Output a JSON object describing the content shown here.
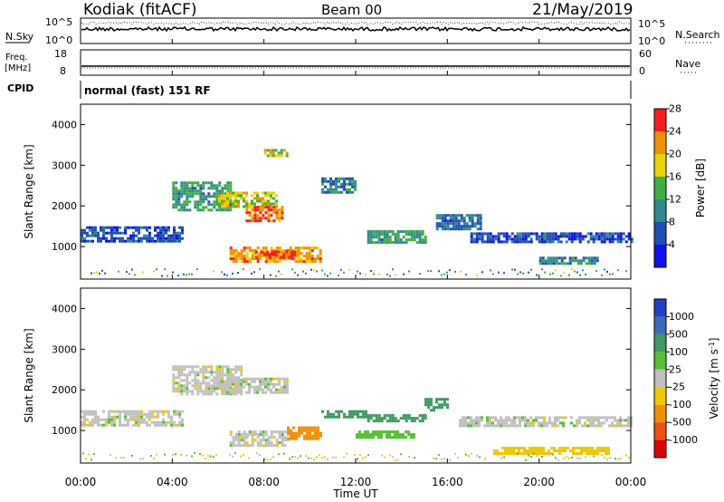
{
  "header": {
    "site": "Kodiak (fitACF)",
    "beam": "Beam 00",
    "date": "21/May/2019"
  },
  "noise_panel": {
    "left_label": "N.Sky",
    "right_label": "N.Search",
    "left_ticks": [
      "10^5",
      "10^0"
    ],
    "right_ticks": [
      "10^5",
      "10^0"
    ]
  },
  "freq_panel": {
    "left_label_line1": "Freq.",
    "left_label_line2": "[MHz]",
    "right_label": "Nave",
    "left_ticks": [
      "18",
      "8"
    ],
    "right_ticks": [
      "60",
      "0"
    ]
  },
  "cpid_panel": {
    "label": "CPID",
    "text": "normal (fast) 151 RF"
  },
  "time_axis": {
    "label": "Time UT",
    "ticks": [
      "00:00",
      "04:00",
      "08:00",
      "12:00",
      "16:00",
      "20:00",
      "00:00"
    ]
  },
  "power_colorbar": {
    "label": "Power [dB]",
    "tick_labels": [
      "4",
      "8",
      "12",
      "16",
      "20",
      "24",
      "28"
    ],
    "colors": [
      "#1010f0",
      "#1f4fb4",
      "#2e8a90",
      "#3fb040",
      "#e8d400",
      "#f29000",
      "#ff1a1a"
    ]
  },
  "velocity_colorbar": {
    "label_prefix": "Velocity [m s",
    "label_sup": "-1",
    "label_suffix": "]",
    "tick_labels": [
      "1000",
      "500",
      "100",
      "25",
      "-25",
      "-100",
      "-500",
      "-1000"
    ],
    "colors": [
      "#2040c8",
      "#3a6abc",
      "#3d9a60",
      "#55c030",
      "#c0c0c0",
      "#f0c800",
      "#f09000",
      "#f05010",
      "#e00000"
    ]
  },
  "chart_data": [
    {
      "type": "heatmap",
      "panel": "power",
      "ylabel": "Slant Range [km]",
      "xlabel": "Time UT",
      "ylim": [
        200,
        4500
      ],
      "xlim": [
        0,
        24
      ],
      "yticks": [
        "1000",
        "2000",
        "3000",
        "4000"
      ],
      "value_unit": "dB",
      "value_range": [
        2,
        31
      ],
      "echo_regions": [
        {
          "t": [
            0,
            4.5
          ],
          "range_km": [
            1150,
            1500
          ],
          "value": 8
        },
        {
          "t": [
            4.0,
            6.5
          ],
          "range_km": [
            1900,
            2600
          ],
          "value": 14
        },
        {
          "t": [
            6.0,
            8.5
          ],
          "range_km": [
            1950,
            2350
          ],
          "value": 20
        },
        {
          "t": [
            7.2,
            8.8
          ],
          "range_km": [
            1650,
            2000
          ],
          "value": 26
        },
        {
          "t": [
            6.5,
            10.5
          ],
          "range_km": [
            650,
            1000
          ],
          "value": 24
        },
        {
          "t": [
            7.5,
            9.5
          ],
          "range_km": [
            700,
            900
          ],
          "value": 28
        },
        {
          "t": [
            10.5,
            12.0
          ],
          "range_km": [
            2300,
            2700
          ],
          "value": 12
        },
        {
          "t": [
            12.5,
            15.0
          ],
          "range_km": [
            1100,
            1400
          ],
          "value": 14
        },
        {
          "t": [
            15.5,
            17.5
          ],
          "range_km": [
            1400,
            1800
          ],
          "value": 10
        },
        {
          "t": [
            17.0,
            24.0
          ],
          "range_km": [
            1100,
            1350
          ],
          "value": 8
        },
        {
          "t": [
            20.0,
            22.5
          ],
          "range_km": [
            550,
            750
          ],
          "value": 12
        },
        {
          "t": [
            8.0,
            9.0
          ],
          "range_km": [
            3200,
            3400
          ],
          "value": 20
        }
      ]
    },
    {
      "type": "heatmap",
      "panel": "velocity",
      "ylabel": "Slant Range [km]",
      "xlabel": "Time UT",
      "ylim": [
        200,
        4500
      ],
      "xlim": [
        0,
        24
      ],
      "yticks": [
        "1000",
        "2000",
        "3000",
        "4000"
      ],
      "value_unit": "m s-1",
      "echo_regions": [
        {
          "t": [
            0,
            4.5
          ],
          "range_km": [
            1150,
            1500
          ],
          "value": 0
        },
        {
          "t": [
            4.0,
            7.0
          ],
          "range_km": [
            1900,
            2600
          ],
          "value": 0
        },
        {
          "t": [
            6.0,
            9.0
          ],
          "range_km": [
            1900,
            2300
          ],
          "value": 0
        },
        {
          "t": [
            6.5,
            9.0
          ],
          "range_km": [
            650,
            1000
          ],
          "value": 0
        },
        {
          "t": [
            9.0,
            10.5
          ],
          "range_km": [
            800,
            1100
          ],
          "value": -150
        },
        {
          "t": [
            10.5,
            12.5
          ],
          "range_km": [
            1300,
            1500
          ],
          "value": 300
        },
        {
          "t": [
            12.5,
            15.0
          ],
          "range_km": [
            1200,
            1400
          ],
          "value": 400
        },
        {
          "t": [
            15.0,
            16.0
          ],
          "range_km": [
            1500,
            1800
          ],
          "value": 300
        },
        {
          "t": [
            12.0,
            14.5
          ],
          "range_km": [
            800,
            1000
          ],
          "value": 60
        },
        {
          "t": [
            16.5,
            24.0
          ],
          "range_km": [
            1100,
            1350
          ],
          "value": 0
        },
        {
          "t": [
            18.0,
            23.0
          ],
          "range_km": [
            400,
            600
          ],
          "value": -60
        }
      ]
    }
  ]
}
